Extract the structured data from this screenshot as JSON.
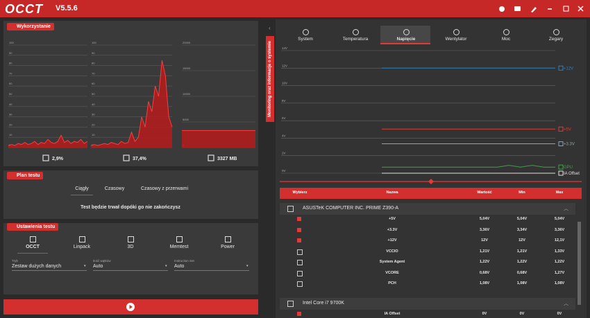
{
  "header": {
    "logo": "OCCT",
    "version": "V5.5.6"
  },
  "usage": {
    "title": "Wykorzystanie",
    "charts": [
      {
        "ylim": [
          0,
          100
        ],
        "yticks": [
          0,
          10,
          20,
          30,
          40,
          50,
          60,
          70,
          80,
          90,
          100
        ],
        "values": [
          2,
          3,
          2,
          4,
          3,
          5,
          3,
          4,
          6,
          3,
          5,
          4,
          8,
          5,
          4,
          6,
          12,
          5,
          7,
          4,
          6,
          5,
          8,
          4,
          6
        ],
        "stat": "2,9%"
      },
      {
        "ylim": [
          0,
          100
        ],
        "yticks": [
          0,
          10,
          20,
          30,
          40,
          50,
          60,
          70,
          80,
          90,
          100
        ],
        "values": [
          2,
          3,
          2,
          3,
          4,
          3,
          5,
          4,
          3,
          6,
          4,
          5,
          15,
          6,
          10,
          30,
          20,
          45,
          35,
          60,
          50,
          85,
          70,
          30,
          20
        ],
        "stat": "37,4%"
      },
      {
        "ylim": [
          0,
          20000
        ],
        "yticks": [
          0,
          5000,
          10000,
          15000,
          20000
        ],
        "values": [
          3327,
          3327,
          3327,
          3327,
          3327,
          3327,
          3327,
          3327,
          3327,
          3327
        ],
        "stat": "3327 MB"
      }
    ]
  },
  "plan": {
    "title": "Plan testu",
    "tabs": [
      "Ciągły",
      "Czasowy",
      "Czasowy z przerwami"
    ],
    "active_tab": 0,
    "description": "Test będzie trwał dopóki go nie zakończysz"
  },
  "settings": {
    "title": "Ustawienia testu",
    "tests": [
      "OCCT",
      "Linpack",
      "3D",
      "Memtest",
      "Power"
    ],
    "active_test": 0,
    "fields": [
      {
        "label": "Tryb",
        "value": "Zestaw dużych danych"
      },
      {
        "label": "Ilość wątków",
        "value": "Auto"
      },
      {
        "label": "Instruction Set",
        "value": "Auto"
      }
    ]
  },
  "side_tab": "Monitoring oraz informacje o systemie",
  "monitor": {
    "tabs": [
      "System",
      "Temperatura",
      "Napięcie",
      "Wentylator",
      "Moc",
      "Zegary"
    ],
    "active_tab": 2
  },
  "chart_data": {
    "type": "line",
    "ylim": [
      0,
      14
    ],
    "yticks": [
      {
        "value": 0,
        "label": "0V"
      },
      {
        "value": 2,
        "label": "2V"
      },
      {
        "value": 4,
        "label": "4V"
      },
      {
        "value": 6,
        "label": "6V"
      },
      {
        "value": 8,
        "label": "8V"
      },
      {
        "value": 10,
        "label": "10V"
      },
      {
        "value": 12,
        "label": "12V"
      },
      {
        "value": 14,
        "label": "14V"
      }
    ],
    "series": [
      {
        "name": "+12V",
        "color": "#2f7fc1",
        "values": [
          12,
          12,
          12,
          12,
          12,
          12,
          12,
          12,
          12,
          12,
          12,
          12,
          12,
          12,
          12,
          12
        ]
      },
      {
        "name": "+5V",
        "color": "#e53935",
        "values": [
          5.04,
          5.04,
          5.04,
          5.04,
          5.04,
          5.04,
          5.04,
          5.04,
          5.04,
          5.04,
          5.04,
          5.04,
          5.04,
          5.04,
          5.04,
          5.04
        ]
      },
      {
        "name": "+3.3V",
        "color": "#90a4ae",
        "values": [
          3.36,
          3.36,
          3.36,
          3.36,
          3.36,
          3.36,
          3.36,
          3.36,
          3.36,
          3.36,
          3.36,
          3.36,
          3.36,
          3.36,
          3.36,
          3.36
        ]
      },
      {
        "name": "GPU",
        "color": "#43a047",
        "values": [
          0.7,
          0.7,
          0.7,
          0.7,
          0.7,
          0.7,
          0.7,
          0.7,
          0.7,
          0.7,
          0.7,
          0.9,
          0.7,
          0.9,
          0.7,
          0.7
        ]
      },
      {
        "name": "IA Offset",
        "color": "#e0e0e0",
        "values": [
          0,
          0,
          0,
          0,
          0,
          0,
          0,
          0,
          0,
          0,
          0,
          0,
          0,
          0,
          0,
          0
        ]
      }
    ]
  },
  "table": {
    "columns": [
      "Wybierz",
      "Nazwa",
      "Wartość",
      "Min",
      "Max"
    ],
    "groups": [
      {
        "name": "ASUSTeK COMPUTER INC. PRIME Z390-A",
        "rows": [
          {
            "checked": true,
            "cells": [
              "+5V",
              "5,04V",
              "5,04V",
              "5,04V"
            ]
          },
          {
            "checked": true,
            "cells": [
              "+3.3V",
              "3,36V",
              "3,34V",
              "3,36V"
            ]
          },
          {
            "checked": true,
            "cells": [
              "+12V",
              "12V",
              "12V",
              "12,1V"
            ]
          },
          {
            "checked": false,
            "cells": [
              "VCCIO",
              "1,21V",
              "1,21V",
              "1,33V"
            ]
          },
          {
            "checked": false,
            "cells": [
              "System Agent",
              "1,22V",
              "1,22V",
              "1,22V"
            ]
          },
          {
            "checked": false,
            "cells": [
              "VCORE",
              "0,68V",
              "0,68V",
              "1,27V"
            ]
          },
          {
            "checked": false,
            "cells": [
              "PCH",
              "1,08V",
              "1,08V",
              "1,08V"
            ]
          }
        ]
      },
      {
        "name": "Intel Core i7 9700K",
        "rows": [
          {
            "checked": true,
            "cells": [
              "IA Offset",
              "0V",
              "0V",
              "0V"
            ]
          }
        ]
      }
    ]
  }
}
